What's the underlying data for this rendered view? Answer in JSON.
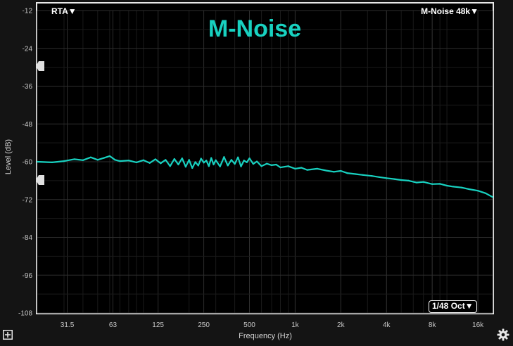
{
  "title": "M-Noise",
  "analyzer_menu": "RTA",
  "source_menu": "M-Noise 48k",
  "smoothing_menu": "1/48 Oct",
  "colors": {
    "trace": "#18d1c0",
    "background": "#000000",
    "grid": "#2e2e2e",
    "frame": "#e8e8e8"
  },
  "icons": {
    "dropdown": "triangle-down-icon",
    "add": "plus-box-icon",
    "settings": "gear-icon",
    "handle": "arrow-handle-icon"
  },
  "chart_data": {
    "type": "line",
    "xlabel": "Frequency (Hz)",
    "ylabel": "Level (dB)",
    "x_scale": "log",
    "xlim": [
      20,
      20000
    ],
    "ylim": [
      -108,
      -12
    ],
    "x_ticks": [
      31.5,
      63,
      125,
      250,
      500,
      1000,
      2000,
      4000,
      8000,
      16000
    ],
    "x_tick_labels": [
      "31.5",
      "63",
      "125",
      "250",
      "500",
      "1k",
      "2k",
      "4k",
      "8k",
      "16k"
    ],
    "y_ticks": [
      -12,
      -24,
      -36,
      -48,
      -60,
      -72,
      -84,
      -96,
      -108
    ],
    "y_tick_labels": [
      "-12",
      "-24",
      "-36",
      "-48",
      "-60",
      "-72",
      "-84",
      "-96",
      "-108"
    ],
    "grid": true,
    "series": [
      {
        "x": [
          20,
          25,
          30,
          35,
          40,
          45,
          50,
          55,
          60,
          65,
          70,
          80,
          90,
          100,
          110,
          120,
          130,
          140,
          150,
          160,
          170,
          180,
          190,
          200,
          210,
          220,
          230,
          240,
          250,
          260,
          270,
          280,
          290,
          300,
          320,
          340,
          360,
          380,
          400,
          420,
          440,
          460,
          480,
          500,
          530,
          560,
          600,
          650,
          700,
          750,
          800,
          900,
          1000,
          1100,
          1200,
          1400,
          1600,
          1800,
          2000,
          2200,
          2500,
          2800,
          3200,
          3600,
          4000,
          4500,
          5000,
          5600,
          6300,
          7000,
          8000,
          9000,
          10000,
          11000,
          12500,
          14000,
          16000,
          18000,
          20000
        ],
        "y": [
          -60.0,
          -60.2,
          -59.8,
          -59.2,
          -59.5,
          -58.6,
          -59.4,
          -58.8,
          -58.2,
          -59.4,
          -59.8,
          -59.6,
          -60.2,
          -59.5,
          -60.4,
          -59.2,
          -60.5,
          -59.4,
          -61.4,
          -59.1,
          -60.9,
          -58.9,
          -61.6,
          -59.4,
          -62.0,
          -60.1,
          -61.2,
          -59.0,
          -60.3,
          -59.6,
          -61.4,
          -58.8,
          -60.9,
          -59.5,
          -61.5,
          -58.5,
          -61.2,
          -59.4,
          -60.7,
          -58.6,
          -61.5,
          -59.6,
          -60.2,
          -58.9,
          -60.7,
          -59.9,
          -61.4,
          -60.6,
          -61.1,
          -60.9,
          -61.8,
          -61.4,
          -62.2,
          -61.9,
          -62.6,
          -62.2,
          -62.8,
          -63.2,
          -62.9,
          -63.6,
          -63.9,
          -64.2,
          -64.5,
          -64.9,
          -65.2,
          -65.5,
          -65.8,
          -66.0,
          -66.6,
          -66.4,
          -67.1,
          -67.0,
          -67.6,
          -67.9,
          -68.2,
          -68.7,
          -69.2,
          -70.0,
          -71.2
        ]
      }
    ]
  }
}
